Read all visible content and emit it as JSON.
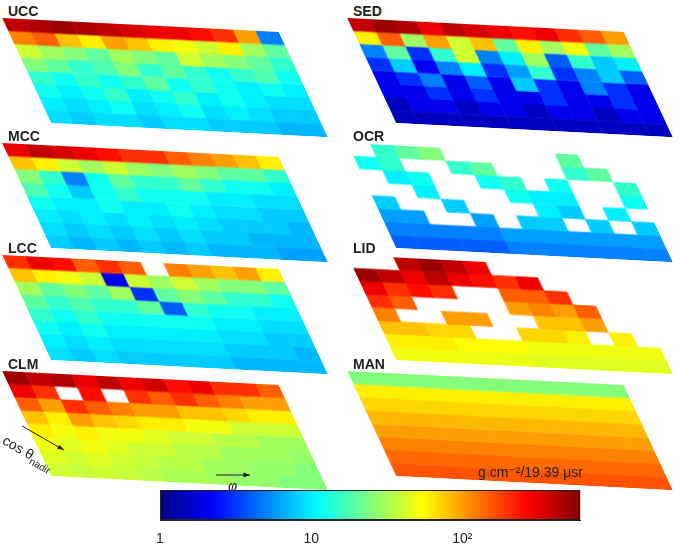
{
  "chart_data": {
    "type": "heatmap",
    "tick_labels": false,
    "x_label": "φ",
    "y_label": "cos θ",
    "y_label_subscript": "nadir",
    "colorbar": {
      "label": "g cm⁻²/19.39 μsr",
      "log": true,
      "range": [
        1,
        600
      ],
      "ticks": [
        1,
        10,
        {
          "value": 100,
          "label": "10²"
        }
      ]
    },
    "panels": [
      {
        "title": "UCC",
        "cells": [
          [
            400,
            450,
            500,
            450,
            400,
            350,
            300,
            300,
            250,
            200,
            100,
            5
          ],
          [
            120,
            150,
            80,
            60,
            100,
            80,
            60,
            50,
            40,
            60,
            30,
            20
          ],
          [
            40,
            30,
            25,
            20,
            30,
            25,
            20,
            40,
            30,
            25,
            20,
            15
          ],
          [
            25,
            20,
            15,
            18,
            25,
            15,
            20,
            15,
            12,
            15,
            18,
            12
          ],
          [
            15,
            12,
            15,
            12,
            15,
            20,
            12,
            15,
            12,
            10,
            12,
            10
          ],
          [
            12,
            10,
            12,
            15,
            10,
            12,
            15,
            10,
            12,
            10,
            9,
            9
          ],
          [
            10,
            9,
            10,
            12,
            9,
            10,
            12,
            9,
            10,
            9,
            8,
            8
          ],
          [
            9,
            8,
            9,
            9,
            8,
            9,
            9,
            8,
            8,
            8,
            7,
            7
          ]
        ]
      },
      {
        "title": "MCC",
        "cells": [
          [
            300,
            400,
            350,
            300,
            250,
            200,
            200,
            150,
            120,
            100,
            80,
            60
          ],
          [
            80,
            60,
            40,
            30,
            40,
            30,
            25,
            30,
            25,
            20,
            20,
            15
          ],
          [
            25,
            15,
            5,
            12,
            20,
            15,
            15,
            20,
            15,
            12,
            12,
            10
          ],
          [
            18,
            12,
            8,
            12,
            15,
            12,
            12,
            12,
            10,
            10,
            9,
            9
          ],
          [
            12,
            10,
            10,
            12,
            10,
            10,
            12,
            10,
            9,
            9,
            8,
            8
          ],
          [
            10,
            9,
            10,
            9,
            10,
            9,
            10,
            9,
            8,
            8,
            8,
            7
          ],
          [
            9,
            8,
            9,
            8,
            9,
            8,
            9,
            8,
            8,
            7,
            7,
            7
          ],
          [
            8,
            7,
            8,
            7,
            8,
            7,
            8,
            7,
            7,
            7,
            6,
            6
          ]
        ]
      },
      {
        "title": "LCC",
        "cells": [
          [
            200,
            300,
            250,
            150,
            200,
            150,
            null,
            120,
            100,
            80,
            100,
            60
          ],
          [
            80,
            60,
            50,
            40,
            2,
            40,
            30,
            40,
            30,
            25,
            25,
            20
          ],
          [
            30,
            20,
            25,
            20,
            30,
            3,
            20,
            25,
            20,
            15,
            15,
            12
          ],
          [
            20,
            15,
            18,
            15,
            15,
            20,
            4,
            15,
            12,
            12,
            10,
            10
          ],
          [
            15,
            12,
            15,
            12,
            12,
            12,
            12,
            12,
            10,
            10,
            9,
            9
          ],
          [
            12,
            10,
            12,
            10,
            10,
            10,
            10,
            10,
            9,
            9,
            8,
            8
          ],
          [
            10,
            9,
            10,
            9,
            9,
            9,
            9,
            9,
            8,
            8,
            8,
            7
          ],
          [
            9,
            8,
            9,
            8,
            8,
            8,
            8,
            8,
            7,
            7,
            7,
            7
          ]
        ]
      },
      {
        "title": "CLM",
        "cells": [
          [
            500,
            400,
            450,
            300,
            400,
            300,
            350,
            250,
            300,
            200,
            200,
            150
          ],
          [
            300,
            200,
            null,
            250,
            null,
            200,
            150,
            200,
            150,
            120,
            100,
            100
          ],
          [
            150,
            100,
            200,
            150,
            120,
            100,
            100,
            80,
            80,
            70,
            60,
            60
          ],
          [
            80,
            60,
            100,
            80,
            70,
            60,
            60,
            50,
            50,
            40,
            40,
            40
          ],
          [
            60,
            50,
            60,
            50,
            50,
            45,
            40,
            40,
            35,
            35,
            30,
            30
          ],
          [
            50,
            45,
            50,
            45,
            40,
            40,
            35,
            35,
            30,
            30,
            30,
            28
          ],
          [
            45,
            40,
            45,
            40,
            38,
            35,
            35,
            30,
            30,
            28,
            28,
            25
          ],
          [
            40,
            38,
            40,
            38,
            35,
            32,
            32,
            30,
            28,
            28,
            25,
            25
          ]
        ]
      },
      {
        "title": "SED",
        "cells": [
          [
            400,
            500,
            450,
            300,
            400,
            350,
            300,
            250,
            300,
            200,
            150,
            100
          ],
          [
            60,
            150,
            30,
            100,
            40,
            80,
            20,
            60,
            30,
            50,
            20,
            30
          ],
          [
            5,
            20,
            3,
            15,
            40,
            5,
            10,
            30,
            4,
            15,
            8,
            10
          ],
          [
            3,
            8,
            2,
            5,
            10,
            3,
            6,
            15,
            3,
            5,
            8,
            4
          ],
          [
            2,
            3,
            5,
            2,
            4,
            2,
            8,
            3,
            2,
            5,
            3,
            2
          ],
          [
            2,
            2,
            3,
            2,
            3,
            2,
            2,
            3,
            2,
            2,
            3,
            2
          ],
          [
            1.5,
            2,
            2,
            1.5,
            2,
            2,
            1.5,
            2,
            2,
            1.5,
            2,
            2
          ],
          [
            1.5,
            1.5,
            1.5,
            1.5,
            1.5,
            1.5,
            1.5,
            1.5,
            1.5,
            1.5,
            1.5,
            1.5
          ]
        ]
      },
      {
        "title": "OCR",
        "cells": [
          [
            null,
            15,
            20,
            25,
            null,
            null,
            null,
            null,
            null,
            20,
            null,
            null
          ],
          [
            12,
            15,
            null,
            null,
            15,
            20,
            null,
            null,
            null,
            15,
            20,
            null
          ],
          [
            null,
            10,
            12,
            null,
            null,
            12,
            15,
            null,
            12,
            null,
            null,
            15
          ],
          [
            null,
            null,
            10,
            null,
            null,
            null,
            12,
            10,
            10,
            null,
            null,
            12
          ],
          [
            8,
            null,
            null,
            8,
            null,
            null,
            null,
            10,
            8,
            null,
            10,
            null
          ],
          [
            6,
            6,
            null,
            null,
            6,
            null,
            8,
            8,
            null,
            8,
            null,
            8
          ],
          [
            5,
            5,
            5,
            5,
            5,
            6,
            6,
            6,
            6,
            6,
            6,
            6
          ],
          [
            4,
            4,
            4,
            4,
            4,
            5,
            5,
            5,
            5,
            5,
            5,
            5
          ]
        ]
      },
      {
        "title": "LID",
        "cells": [
          [
            null,
            null,
            400,
            500,
            400,
            300,
            null,
            null,
            null,
            null,
            null,
            null
          ],
          [
            500,
            400,
            300,
            400,
            300,
            250,
            200,
            300,
            null,
            null,
            null,
            null
          ],
          [
            300,
            200,
            250,
            200,
            null,
            null,
            150,
            150,
            200,
            null,
            null,
            null
          ],
          [
            200,
            150,
            null,
            null,
            null,
            null,
            100,
            120,
            100,
            150,
            null,
            null
          ],
          [
            120,
            null,
            null,
            100,
            100,
            null,
            null,
            80,
            80,
            100,
            null,
            null
          ],
          [
            80,
            80,
            70,
            70,
            null,
            null,
            70,
            70,
            60,
            null,
            60,
            null
          ],
          [
            60,
            60,
            60,
            55,
            55,
            55,
            50,
            50,
            50,
            50,
            50,
            50
          ],
          [
            50,
            50,
            50,
            50,
            48,
            48,
            45,
            45,
            45,
            45,
            45,
            45
          ]
        ]
      },
      {
        "title": "MAN",
        "cells": [
          [
            25,
            25,
            25,
            25,
            25,
            25,
            25,
            25,
            25,
            25,
            25,
            25
          ],
          [
            60,
            60,
            60,
            60,
            60,
            60,
            60,
            60,
            60,
            60,
            60,
            60
          ],
          [
            70,
            70,
            70,
            70,
            70,
            70,
            70,
            70,
            70,
            70,
            70,
            70
          ],
          [
            85,
            85,
            85,
            85,
            85,
            85,
            85,
            85,
            85,
            85,
            85,
            85
          ],
          [
            100,
            100,
            100,
            100,
            100,
            100,
            100,
            100,
            100,
            100,
            100,
            100
          ],
          [
            120,
            120,
            120,
            120,
            120,
            120,
            120,
            120,
            120,
            120,
            120,
            120
          ],
          [
            140,
            140,
            140,
            140,
            140,
            140,
            140,
            140,
            140,
            140,
            140,
            140
          ],
          [
            160,
            160,
            160,
            160,
            160,
            160,
            160,
            160,
            160,
            160,
            160,
            160
          ]
        ]
      }
    ]
  }
}
